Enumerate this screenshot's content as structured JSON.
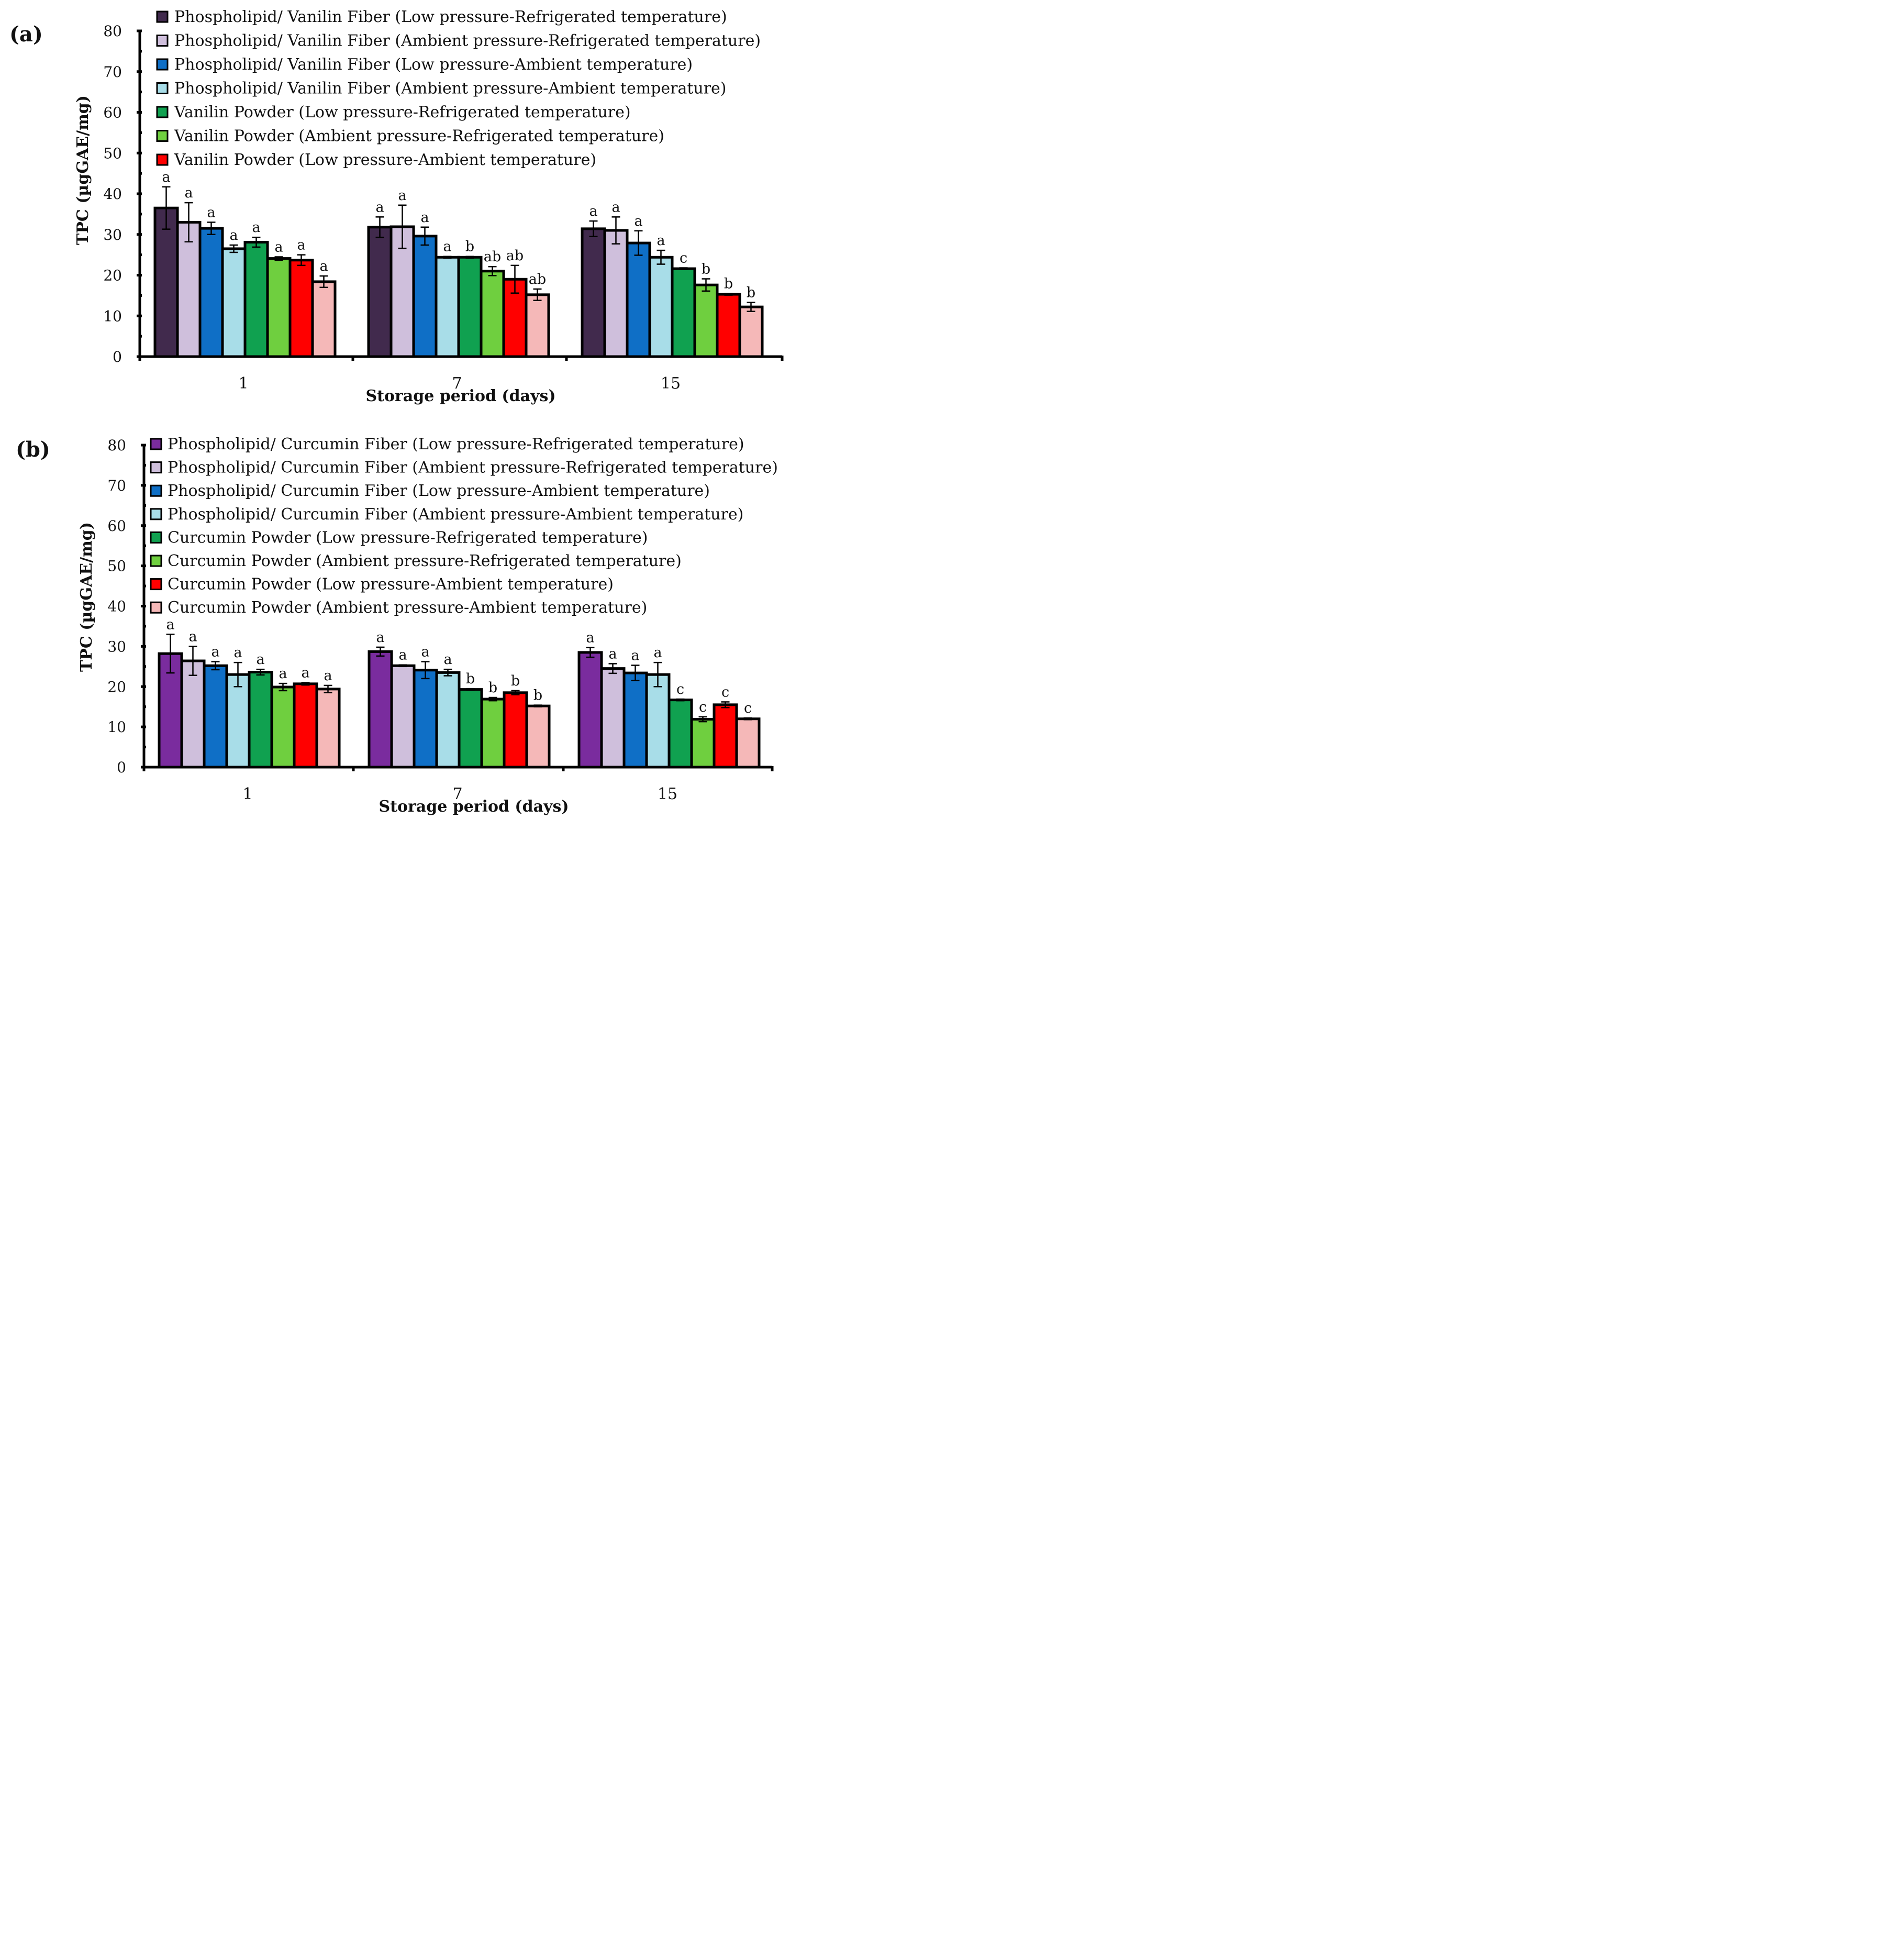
{
  "chart_data": [
    {
      "panel_label": "(a)",
      "type": "bar",
      "ylabel": "TPC (µgGAE/mg)",
      "xlabel": "Storage period (days)",
      "ylim": [
        0,
        80
      ],
      "yticks": [
        "0",
        "10",
        "20",
        "30",
        "40",
        "50",
        "60",
        "70",
        "80"
      ],
      "categories": [
        "1",
        "7",
        "15"
      ],
      "legend_placement": "top",
      "series": [
        {
          "name": "Phospholipid/ Vanilin Fiber (Low pressure-Refrigerated temperature)",
          "color": "#412a4d",
          "values": [
            36.5,
            31.8,
            31.4
          ],
          "errors": [
            5.2,
            2.5,
            1.9
          ],
          "labels": [
            "a",
            "a",
            "a"
          ]
        },
        {
          "name": "Phospholipid/ Vanilin Fiber (Ambient pressure-Refrigerated temperature)",
          "color": "#cfbfdc",
          "values": [
            33,
            31.9,
            31
          ],
          "errors": [
            4.8,
            5.3,
            3.3
          ],
          "labels": [
            "a",
            "a",
            "a"
          ]
        },
        {
          "name": "Phospholipid/ Vanilin Fiber (Low pressure-Ambient temperature)",
          "color": "#0f6fc6",
          "values": [
            31.5,
            29.6,
            27.9
          ],
          "errors": [
            1.5,
            2.2,
            3
          ],
          "labels": [
            "a",
            "a",
            "a"
          ]
        },
        {
          "name": "Phospholipid/ Vanilin Fiber (Ambient pressure-Ambient temperature)",
          "color": "#a8dde8",
          "values": [
            26.5,
            24.4,
            24.4
          ],
          "errors": [
            0.9,
            0.2,
            1.7
          ],
          "labels": [
            "a",
            "a",
            "a"
          ]
        },
        {
          "name": "Vanilin Powder (Low pressure-Refrigerated temperature)",
          "color": "#10a150",
          "values": [
            28.1,
            24.4,
            21.6
          ],
          "errors": [
            1.2,
            0.2,
            0.2
          ],
          "labels": [
            "a",
            "b",
            "c"
          ]
        },
        {
          "name": "Vanilin Powder  (Ambient pressure-Refrigerated temperature)",
          "color": "#6fcf3f",
          "values": [
            24.1,
            21,
            17.6
          ],
          "errors": [
            0.4,
            1.1,
            1.5
          ],
          "labels": [
            "a",
            "ab",
            "b"
          ]
        },
        {
          "name": "Vanilin Powder (Low pressure-Ambient temperature)",
          "color": "#ff0000",
          "values": [
            23.7,
            19,
            15.3
          ],
          "errors": [
            1.3,
            3.4,
            0.2
          ],
          "labels": [
            "a",
            "ab",
            "b"
          ]
        },
        {
          "name": "",
          "color": "#f5b8b8",
          "values": [
            18.4,
            15.2,
            12.2
          ],
          "errors": [
            1.4,
            1.4,
            1.1
          ],
          "labels": [
            "a",
            "ab",
            "b"
          ]
        }
      ]
    },
    {
      "panel_label": "(b)",
      "type": "bar",
      "ylabel": "TPC (µgGAE/mg)",
      "xlabel": "Storage period (days)",
      "ylim": [
        0,
        80
      ],
      "yticks": [
        "0",
        "10",
        "20",
        "30",
        "40",
        "50",
        "60",
        "70",
        "80"
      ],
      "categories": [
        "1",
        "7",
        "15"
      ],
      "legend_placement": "top",
      "series": [
        {
          "name": "Phospholipid/ Curcumin Fiber (Low pressure-Refrigerated temperature)",
          "color": "#7a2c9e",
          "values": [
            28.2,
            28.7,
            28.5
          ],
          "errors": [
            4.8,
            1.1,
            1.2
          ],
          "labels": [
            "a",
            "a",
            "a"
          ]
        },
        {
          "name": "Phospholipid/ Curcumin Fiber (Ambient pressure-Refrigerated temperature)",
          "color": "#cfbfdc",
          "values": [
            26.4,
            25.2,
            24.5
          ],
          "errors": [
            3.6,
            0.2,
            1.2
          ],
          "labels": [
            "a",
            "a",
            "a"
          ]
        },
        {
          "name": "Phospholipid/ Curcumin Fiber (Low pressure-Ambient temperature)",
          "color": "#0f6fc6",
          "values": [
            25.2,
            24.1,
            23.4
          ],
          "errors": [
            1,
            2.1,
            1.9
          ],
          "labels": [
            "a",
            "a",
            "a"
          ]
        },
        {
          "name": "Phospholipid/ Curcumin Fiber (Ambient pressure-Ambient temperature)",
          "color": "#a8dde8",
          "values": [
            23,
            23.5,
            23
          ],
          "errors": [
            3,
            0.8,
            3
          ],
          "labels": [
            "a",
            "a",
            "a"
          ]
        },
        {
          "name": "Curcumin Powder (Low pressure-Refrigerated temperature)",
          "color": "#10a150",
          "values": [
            23.6,
            19.3,
            16.7
          ],
          "errors": [
            0.7,
            0.2,
            0.2
          ],
          "labels": [
            "a",
            "b",
            "c"
          ]
        },
        {
          "name": "Curcumin Powder (Ambient pressure-Refrigerated temperature)",
          "color": "#6fcf3f",
          "values": [
            19.9,
            16.9,
            11.9
          ],
          "errors": [
            0.9,
            0.4,
            0.6
          ],
          "labels": [
            "a",
            "b",
            "c"
          ]
        },
        {
          "name": "Curcumin Powder (Low pressure-Ambient temperature)",
          "color": "#ff0000",
          "values": [
            20.7,
            18.5,
            15.5
          ],
          "errors": [
            0.3,
            0.5,
            0.7
          ],
          "labels": [
            "a",
            "b",
            "c"
          ]
        },
        {
          "name": "Curcumin Powder (Ambient pressure-Ambient temperature)",
          "color": "#f5b8b8",
          "values": [
            19.4,
            15.2,
            12
          ],
          "errors": [
            0.9,
            0.2,
            0.2
          ],
          "labels": [
            "a",
            "b",
            "c"
          ]
        }
      ]
    }
  ]
}
